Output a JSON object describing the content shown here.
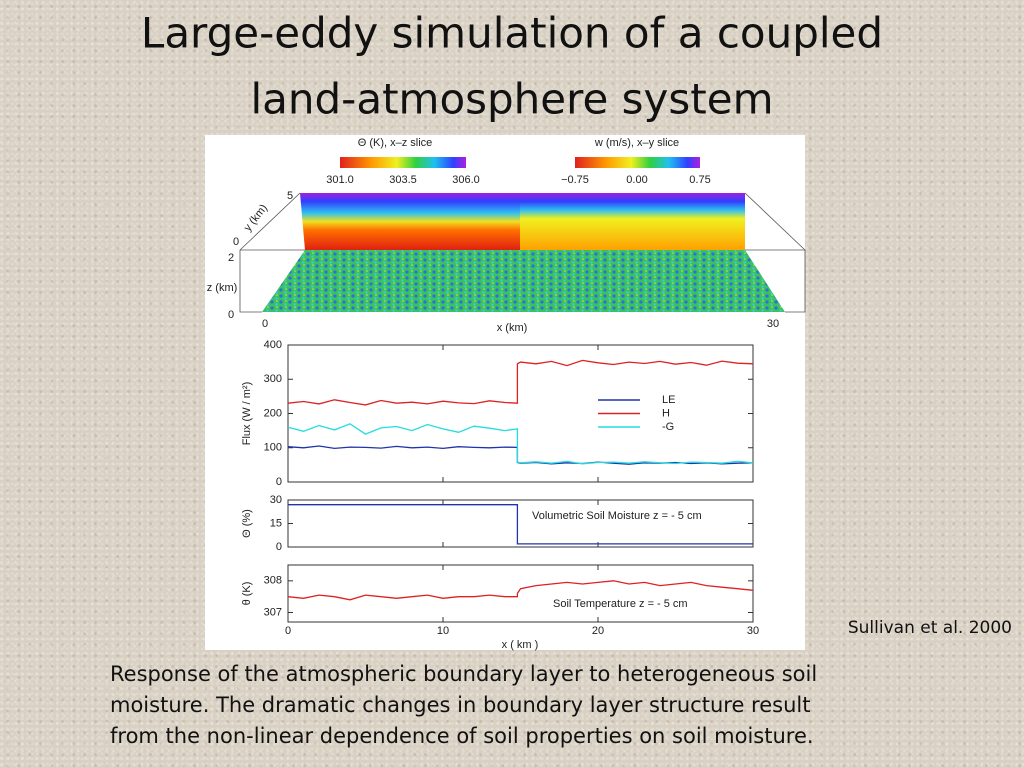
{
  "title": {
    "lines": [
      "Large-eddy simulation of a coupled",
      "land-atmosphere system"
    ]
  },
  "figure": {
    "top": {
      "colorbars": [
        {
          "title": "Θ (K), x–z slice",
          "ticks": [
            "301.0",
            "303.5",
            "306.0"
          ]
        },
        {
          "title": "w (m/s), x–y slice",
          "ticks": [
            "−0.75",
            "0.00",
            "0.75"
          ]
        }
      ],
      "axis_labels": {
        "y": "y (km)",
        "z": "z (km)",
        "x": "x (km)"
      },
      "tick_labels": {
        "y_top": "5",
        "y_bottom": "0",
        "z_top": "2",
        "z_bottom": "0",
        "x_left": "0",
        "x_right": "30"
      }
    },
    "xlim": [
      0,
      30
    ],
    "xticks": [
      0,
      10,
      20,
      30
    ],
    "xlabel": "x ( km )",
    "x": [
      0,
      1,
      2,
      3,
      4,
      5,
      6,
      7,
      8,
      9,
      10,
      11,
      12,
      13,
      14,
      14.8,
      14.8,
      15,
      16,
      17,
      18,
      19,
      20,
      21,
      22,
      23,
      24,
      25,
      26,
      27,
      28,
      29,
      30
    ],
    "panels": [
      {
        "ylabel": "Flux  (W / m²)",
        "ylim": [
          0,
          400
        ],
        "yticks": [
          0,
          100,
          200,
          300,
          400
        ],
        "series": [
          {
            "name": "LE",
            "color": "#2233aa",
            "values": [
              103,
              100,
              105,
              98,
              102,
              101,
              99,
              104,
              100,
              102,
              98,
              103,
              101,
              100,
              102,
              101,
              57,
              55,
              57,
              53,
              56,
              54,
              58,
              55,
              52,
              56,
              55,
              57,
              54,
              56,
              53,
              55,
              56
            ]
          },
          {
            "name": "H",
            "color": "#dd2222",
            "values": [
              230,
              235,
              228,
              240,
              232,
              225,
              238,
              230,
              233,
              228,
              236,
              231,
              229,
              237,
              232,
              230,
              345,
              350,
              345,
              352,
              340,
              355,
              348,
              343,
              350,
              346,
              352,
              344,
              349,
              341,
              353,
              347,
              345
            ]
          },
          {
            "name": "-G",
            "color": "#22dddd",
            "values": [
              160,
              148,
              165,
              152,
              170,
              140,
              158,
              162,
              150,
              168,
              155,
              145,
              163,
              157,
              150,
              155,
              58,
              56,
              59,
              55,
              60,
              53,
              57,
              58,
              55,
              59,
              56,
              54,
              58,
              57,
              55,
              60,
              56
            ]
          }
        ]
      },
      {
        "ylabel": "Θ (%)",
        "ylim": [
          0,
          30
        ],
        "yticks": [
          0,
          15,
          30
        ],
        "annotation": "Volumetric Soil Moisture  z = - 5 cm",
        "series": [
          {
            "color": "#2233aa",
            "values": [
              27,
              27,
              27,
              27,
              27,
              27,
              27,
              27,
              27,
              27,
              27,
              27,
              27,
              27,
              27,
              27,
              2,
              2,
              2,
              2,
              2,
              2,
              2,
              2,
              2,
              2,
              2,
              2,
              2,
              2,
              2,
              2,
              2
            ]
          }
        ]
      },
      {
        "ylabel": "θ (K)",
        "ylim": [
          306.7,
          308.5
        ],
        "yticks": [
          307,
          308
        ],
        "annotation": "Soil Temperature  z = - 5 cm",
        "series": [
          {
            "color": "#dd2222",
            "values": [
              307.5,
              307.45,
              307.55,
              307.5,
              307.4,
              307.55,
              307.5,
              307.45,
              307.5,
              307.55,
              307.45,
              307.5,
              307.5,
              307.55,
              307.5,
              307.5,
              307.6,
              307.75,
              307.85,
              307.9,
              307.95,
              307.9,
              307.95,
              308.0,
              307.9,
              307.95,
              307.85,
              307.9,
              307.95,
              307.85,
              307.8,
              307.75,
              307.7
            ]
          }
        ]
      }
    ]
  },
  "source": "Sullivan et al. 2000",
  "caption": {
    "lines": [
      "Response of the atmospheric boundary layer to heterogeneous soil",
      "moisture. The dramatic changes in boundary layer structure result",
      "from the non-linear dependence of soil properties on soil moisture."
    ]
  }
}
